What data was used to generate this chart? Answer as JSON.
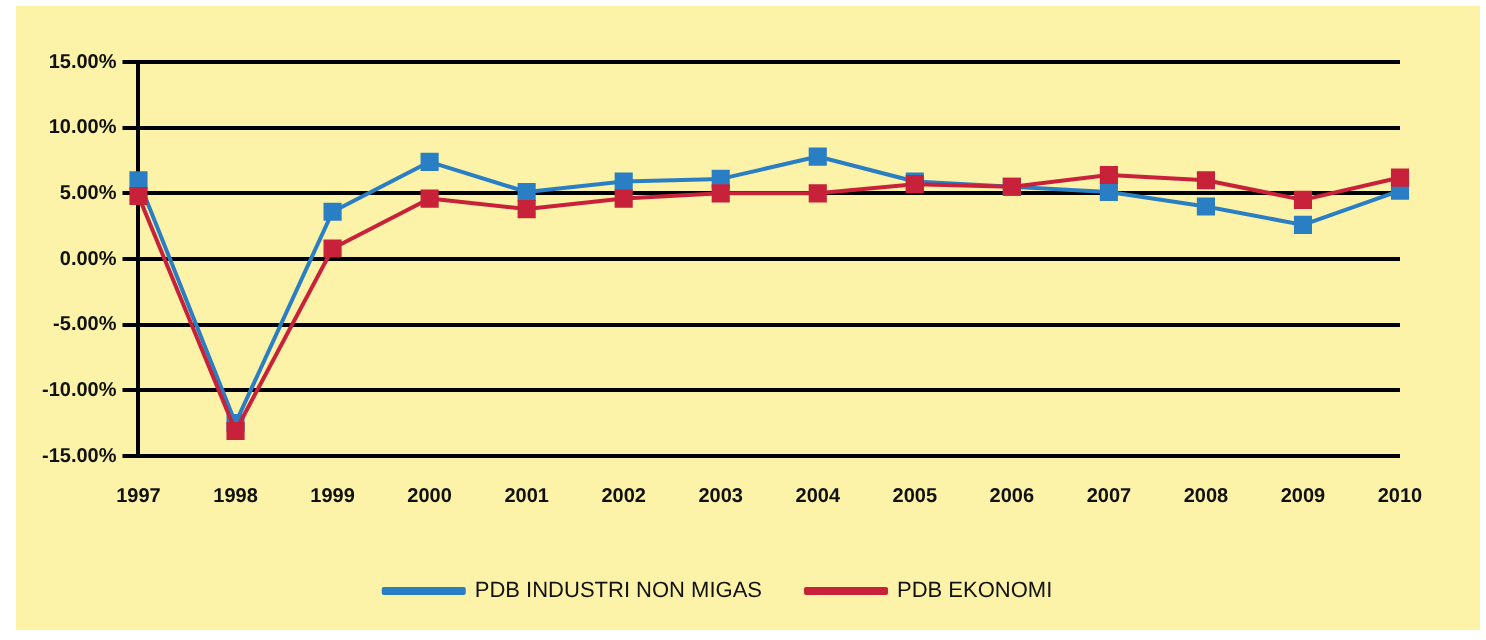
{
  "chart_data": {
    "type": "line",
    "categories": [
      "1997",
      "1998",
      "1999",
      "2000",
      "2001",
      "2002",
      "2003",
      "2004",
      "2005",
      "2006",
      "2007",
      "2008",
      "2009",
      "2010"
    ],
    "series": [
      {
        "name": "PDB INDUSTRI NON MIGAS",
        "color": "#2a7fc4",
        "values": [
          6.0,
          -12.5,
          3.6,
          7.4,
          5.1,
          5.9,
          6.1,
          7.8,
          5.9,
          5.5,
          5.1,
          4.0,
          2.6,
          5.2
        ]
      },
      {
        "name": "PDB EKONOMI",
        "color": "#c8213a",
        "values": [
          4.8,
          -13.1,
          0.8,
          4.6,
          3.8,
          4.6,
          5.0,
          5.0,
          5.7,
          5.5,
          6.4,
          6.0,
          4.5,
          6.2
        ]
      }
    ],
    "ylim": [
      -15,
      15
    ],
    "yticks": [
      {
        "value": -15,
        "label": "-15.00%"
      },
      {
        "value": -10,
        "label": "-10.00%"
      },
      {
        "value": -5,
        "label": "-5.00%"
      },
      {
        "value": 0,
        "label": "0.00%"
      },
      {
        "value": 5,
        "label": "5.00%"
      },
      {
        "value": 10,
        "label": "10.00%"
      },
      {
        "value": 15,
        "label": "15.00%"
      }
    ],
    "grid": "y",
    "legend": "bottom",
    "marker": "square",
    "line_style": "solid"
  }
}
